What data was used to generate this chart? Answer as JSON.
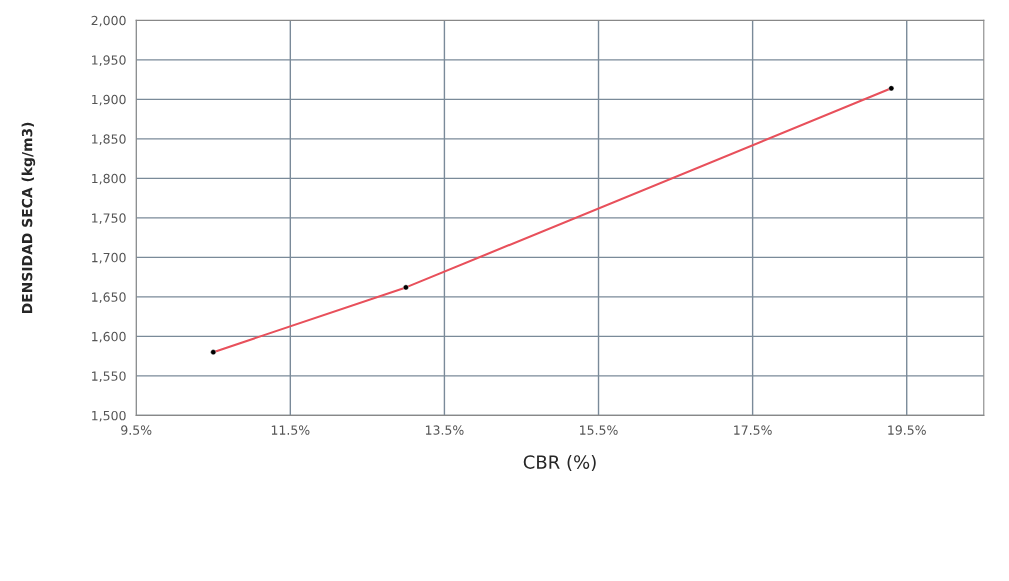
{
  "chart_data": {
    "type": "line",
    "xlabel": "CBR (%)",
    "ylabel": "DENSIDAD SECA (kg/m3)",
    "series": [
      {
        "color": "#e8505b",
        "x": [
          10.5,
          13.0,
          19.3
        ],
        "values": [
          1580,
          1662,
          1914
        ],
        "marker": "none"
      },
      {
        "type": "scatter",
        "color": "#000000",
        "x": [
          10.5,
          13.0,
          19.3
        ],
        "values": [
          1580,
          1662,
          1914
        ],
        "marker": "circle"
      }
    ],
    "xlim": [
      9.5,
      20.5
    ],
    "xticks": [
      {
        "value": 9.5,
        "label": "9.5%"
      },
      {
        "value": 11.5,
        "label": "11.5%"
      },
      {
        "value": 13.5,
        "label": "13.5%"
      },
      {
        "value": 15.5,
        "label": "15.5%"
      },
      {
        "value": 17.5,
        "label": "17.5%"
      },
      {
        "value": 19.5,
        "label": "19.5%"
      }
    ],
    "ylim": [
      1500,
      2000
    ],
    "yticks": [
      {
        "value": 1500,
        "label": "1,500"
      },
      {
        "value": 1550,
        "label": "1,550"
      },
      {
        "value": 1600,
        "label": "1,600"
      },
      {
        "value": 1650,
        "label": "1,650"
      },
      {
        "value": 1700,
        "label": "1,700"
      },
      {
        "value": 1750,
        "label": "1,750"
      },
      {
        "value": 1800,
        "label": "1,800"
      },
      {
        "value": 1850,
        "label": "1,850"
      },
      {
        "value": 1900,
        "label": "1,900"
      },
      {
        "value": 1950,
        "label": "1,950"
      },
      {
        "value": 2000,
        "label": "2,000"
      }
    ],
    "grid": true,
    "legend": false
  }
}
